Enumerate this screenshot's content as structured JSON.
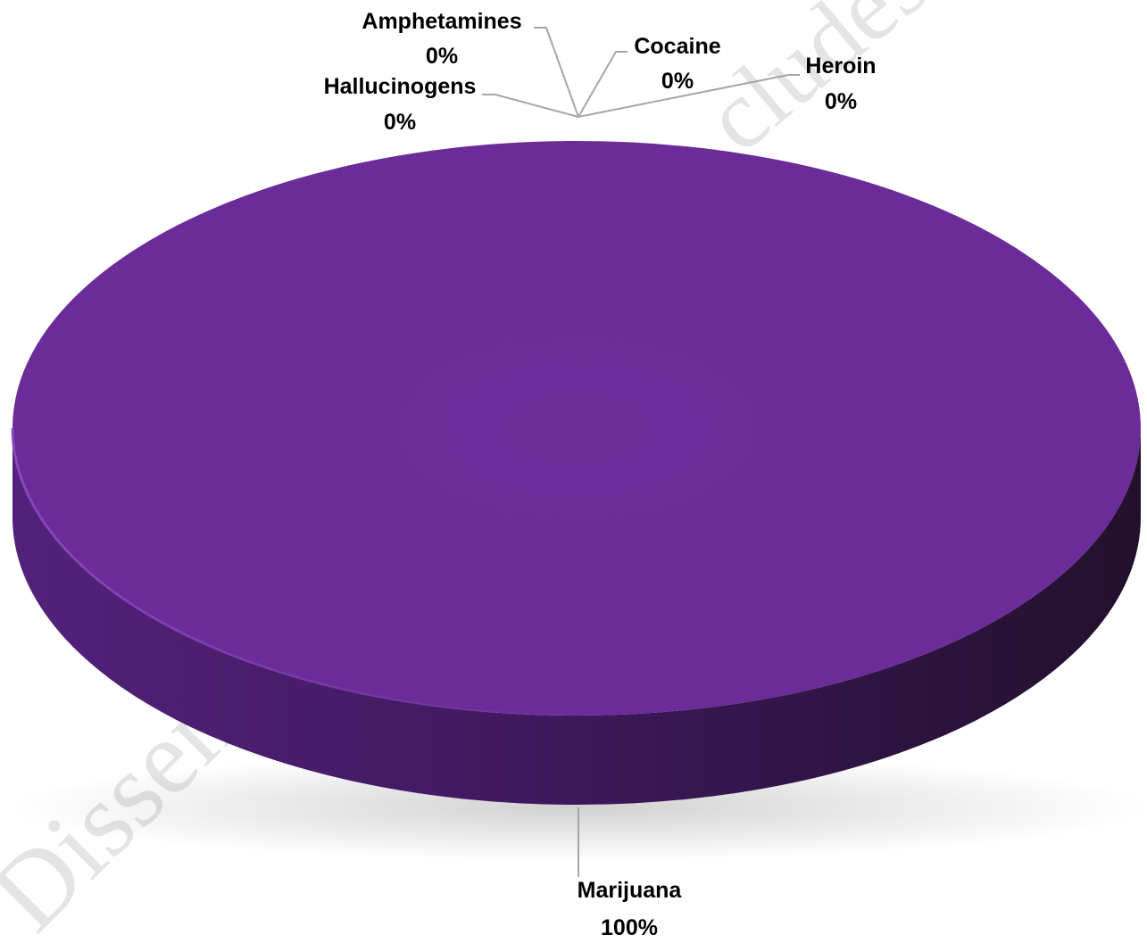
{
  "chart_data": {
    "type": "pie",
    "style": "3d",
    "title": "",
    "slices": [
      {
        "label": "Marijuana",
        "value": 100,
        "percent_label": "100%"
      },
      {
        "label": "Hallucinogens",
        "value": 0,
        "percent_label": "0%"
      },
      {
        "label": "Amphetamines",
        "value": 0,
        "percent_label": "0%"
      },
      {
        "label": "Cocaine",
        "value": 0,
        "percent_label": "0%"
      },
      {
        "label": "Heroin",
        "value": 0,
        "percent_label": "0%"
      }
    ],
    "colors": {
      "main_slice_top": "#6c2d9a",
      "main_slice_side_light": "#4f2273",
      "main_slice_side_dark": "#26102f",
      "leader_line": "#a6a6a6"
    },
    "legend": "none",
    "data_labels": "outside-with-leader-lines"
  },
  "watermark": {
    "left_fragment": "Dissem",
    "right_fragment": "cludes"
  }
}
